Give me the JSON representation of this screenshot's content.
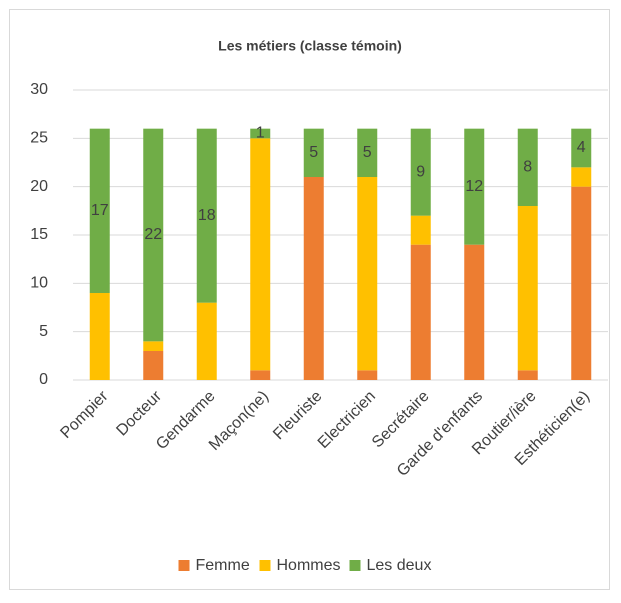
{
  "chart_data": {
    "type": "stacked_bar",
    "title": "Les métiers (classe témoin)",
    "categories": [
      "Pompier",
      "Docteur",
      "Gendarme",
      "Maçon(ne)",
      "Fleuriste",
      "Electricien",
      "Secrétaire",
      "Garde d'enfants",
      "Routier/ière",
      "Esthéticien(e)"
    ],
    "series": [
      {
        "name": "Femme",
        "color": "#ed7d31",
        "values": [
          0,
          3,
          0,
          1,
          21,
          1,
          14,
          14,
          1,
          20
        ]
      },
      {
        "name": "Hommes",
        "color": "#ffc000",
        "values": [
          9,
          1,
          8,
          24,
          0,
          20,
          3,
          0,
          17,
          2
        ]
      },
      {
        "name": "Les deux",
        "color": "#70ad47",
        "values": [
          17,
          22,
          18,
          1,
          5,
          5,
          9,
          12,
          8,
          4
        ],
        "data_labels": true
      }
    ],
    "ylim": [
      0,
      30
    ],
    "yticks": [
      0,
      5,
      10,
      15,
      20,
      25,
      30
    ],
    "grid": true,
    "legend": "bottom"
  }
}
